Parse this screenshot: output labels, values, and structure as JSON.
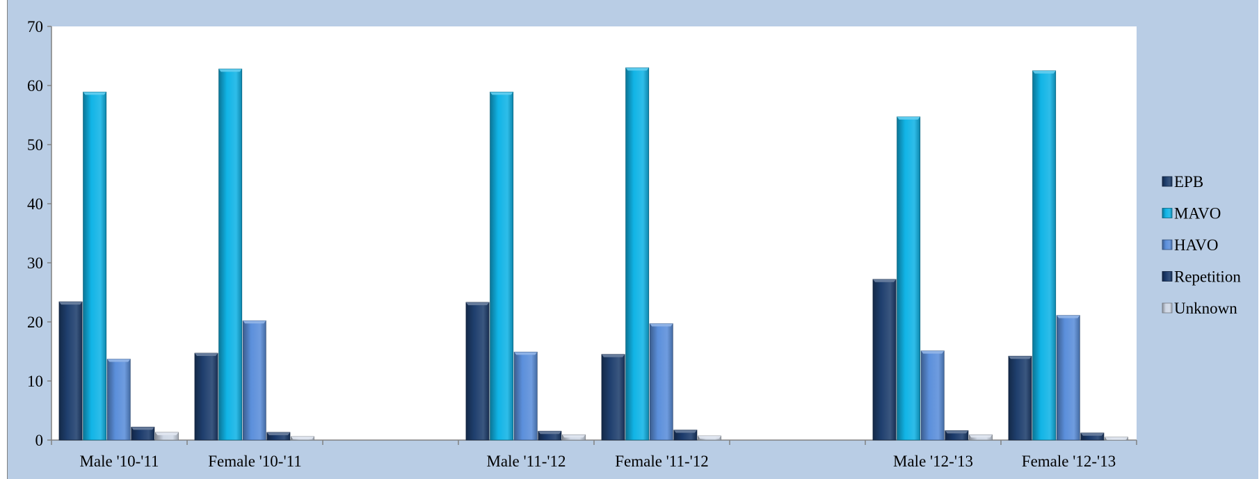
{
  "caption": "",
  "chart_data": {
    "type": "bar",
    "title": "",
    "xlabel": "",
    "ylabel": "",
    "ylim": [
      0,
      70
    ],
    "yticks": [
      0,
      10,
      20,
      30,
      40,
      50,
      60,
      70
    ],
    "categories": [
      "Male '10-'11",
      "Female '10-'11",
      "",
      "Male '11-'12",
      "Female '11-'12",
      "",
      "Male '12-'13",
      "Female '12-'13"
    ],
    "series": [
      {
        "name": "EPB",
        "color": "#1f3f6e",
        "values": [
          23.4,
          14.7,
          null,
          23.3,
          14.5,
          null,
          27.2,
          14.2
        ]
      },
      {
        "name": "MAVO",
        "color": "#11b4e6",
        "values": [
          58.9,
          62.8,
          null,
          58.9,
          63.0,
          null,
          54.7,
          62.5
        ]
      },
      {
        "name": "HAVO",
        "color": "#5b8fdb",
        "values": [
          13.7,
          20.2,
          null,
          14.9,
          19.7,
          null,
          15.1,
          21.1
        ]
      },
      {
        "name": "Repetition",
        "color": "#1b3a6b",
        "values": [
          2.2,
          1.3,
          null,
          1.5,
          1.7,
          null,
          1.6,
          1.2
        ]
      },
      {
        "name": "Unknown",
        "color": "#cfd8e6",
        "values": [
          1.3,
          0.6,
          null,
          0.9,
          0.7,
          null,
          0.9,
          0.5
        ]
      }
    ],
    "grid": false,
    "legend_position": "right"
  }
}
